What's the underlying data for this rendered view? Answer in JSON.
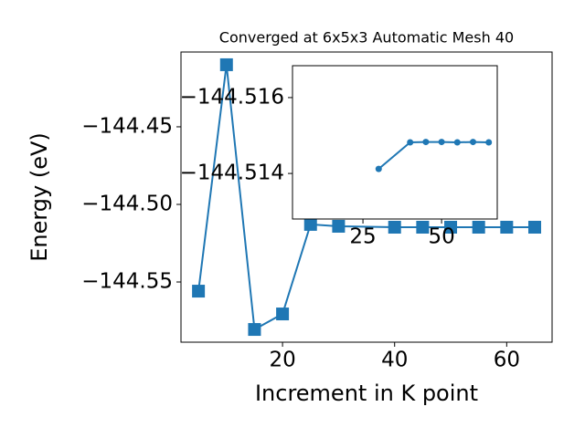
{
  "chart_data": [
    {
      "type": "line",
      "title": "Converged at 6x5x3 Automatic Mesh 40",
      "xlabel": "Increment in K point",
      "ylabel": "Energy (eV)",
      "x": [
        5,
        10,
        15,
        20,
        25,
        30,
        40,
        45,
        50,
        55,
        60,
        65
      ],
      "series": [
        {
          "color": "#1f77b4",
          "marker": "square",
          "values": [
            -144.5559,
            -144.41,
            -144.5806,
            -144.5706,
            -144.5129,
            -144.5141,
            -144.5147,
            -144.5147,
            -144.5147,
            -144.5147,
            -144.5147,
            -144.5147
          ]
        }
      ],
      "xlim": [
        1.88,
        68.1
      ],
      "ylim": [
        -144.5888,
        -144.4018
      ],
      "xticks": [
        20,
        40,
        60
      ],
      "yticks": [
        {
          "value": -144.55,
          "label": "−144.55"
        },
        {
          "value": -144.5,
          "label": "−144.50"
        },
        {
          "value": -144.45,
          "label": "−144.45"
        }
      ]
    },
    {
      "type": "line",
      "x": [
        30,
        40,
        45,
        50,
        55,
        60,
        65
      ],
      "series": [
        {
          "color": "#1f77b4",
          "marker": "circle",
          "values": [
            -144.51412,
            -144.51482,
            -144.51483,
            -144.51483,
            -144.51482,
            -144.51483,
            -144.51482
          ]
        }
      ],
      "xlim": [
        2.6,
        67.7
      ],
      "ylim": [
        -144.5128,
        -144.51684
      ],
      "xticks": [
        25,
        50
      ],
      "yticks": [
        {
          "value": -144.514,
          "label": "−144.514"
        },
        {
          "value": -144.516,
          "label": "−144.516"
        }
      ]
    }
  ]
}
